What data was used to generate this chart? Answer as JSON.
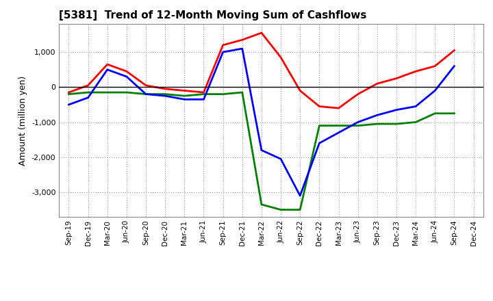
{
  "title": "[5381]  Trend of 12-Month Moving Sum of Cashflows",
  "ylabel": "Amount (million yen)",
  "background_color": "#ffffff",
  "plot_bg_color": "#ffffff",
  "grid_color": "#999999",
  "x_labels": [
    "Sep-19",
    "Dec-19",
    "Mar-20",
    "Jun-20",
    "Sep-20",
    "Dec-20",
    "Mar-21",
    "Jun-21",
    "Sep-21",
    "Dec-21",
    "Mar-22",
    "Jun-22",
    "Sep-22",
    "Dec-22",
    "Mar-23",
    "Jun-23",
    "Sep-23",
    "Dec-23",
    "Mar-24",
    "Jun-24",
    "Sep-24",
    "Dec-24"
  ],
  "operating": [
    -150,
    50,
    650,
    450,
    50,
    -50,
    -100,
    -150,
    1200,
    1350,
    1550,
    850,
    -100,
    -550,
    -600,
    -200,
    100,
    250,
    450,
    600,
    1050,
    null
  ],
  "investing": [
    -200,
    -150,
    -150,
    -150,
    -200,
    -200,
    -250,
    -200,
    -200,
    -150,
    -3350,
    -3500,
    -3500,
    -1100,
    -1100,
    -1100,
    -1050,
    -1050,
    -1000,
    -750,
    -750,
    null
  ],
  "free": [
    -500,
    -300,
    500,
    300,
    -200,
    -250,
    -350,
    -350,
    1000,
    1100,
    -1800,
    -2050,
    -3100,
    -1600,
    -1300,
    -1000,
    -800,
    -650,
    -550,
    -100,
    600,
    null
  ],
  "operating_color": "#ff0000",
  "investing_color": "#008000",
  "free_color": "#0000ff",
  "ylim": [
    -3700,
    1800
  ],
  "yticks": [
    -3000,
    -2000,
    -1000,
    0,
    1000
  ]
}
